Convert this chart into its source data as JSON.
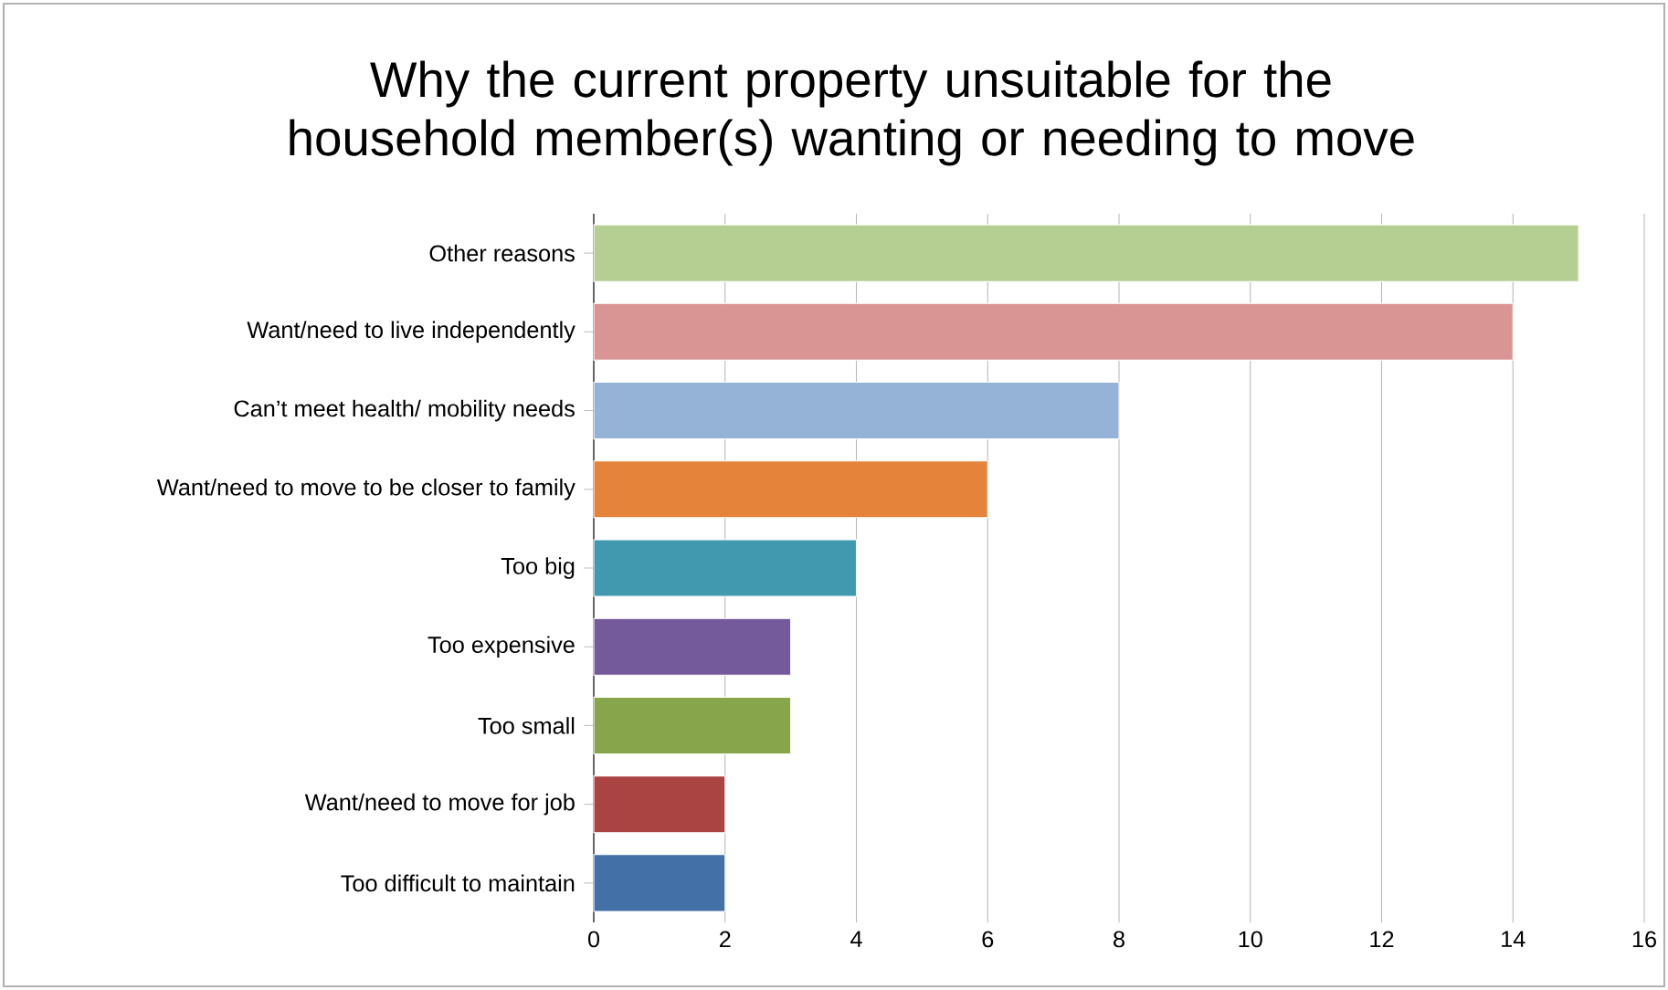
{
  "chart_data": {
    "type": "bar",
    "orientation": "horizontal",
    "title": "Why the current property unsuitable for the household member(s) wanting or needing to move",
    "categories": [
      "Other reasons",
      "Want/need to live independently",
      "Can’t meet health/ mobility needs",
      "Want/need to move to be closer to family",
      "Too big",
      "Too expensive",
      "Too small",
      "Want/need to move for job",
      "Too difficult to maintain"
    ],
    "values": [
      15,
      14,
      8,
      6,
      4,
      3,
      3,
      2,
      2
    ],
    "colors": [
      "#b5cf92",
      "#d99594",
      "#95b3d7",
      "#e5833a",
      "#4199b0",
      "#74599b",
      "#87a64c",
      "#a94442",
      "#4470a8"
    ],
    "xlim": [
      0,
      16
    ],
    "xticks": [
      0,
      2,
      4,
      6,
      8,
      10,
      12,
      14,
      16
    ],
    "grid": "x"
  }
}
